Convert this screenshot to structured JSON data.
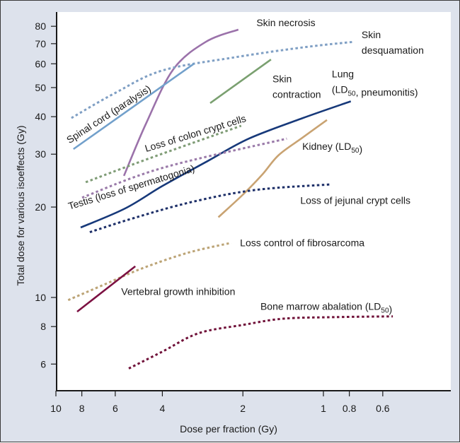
{
  "chart_data": {
    "type": "line",
    "title": "",
    "xlabel": "Dose per fraction (Gy)",
    "ylabel": "Total dose for various isoeffects (Gy)",
    "xscale": "log",
    "yscale": "log",
    "x_reversed": true,
    "xlim": [
      10,
      0.5
    ],
    "ylim": [
      5,
      90
    ],
    "grid": false,
    "legend": "none (inline labels)",
    "xticks": [
      {
        "value": 10,
        "label": "10"
      },
      {
        "value": 8,
        "label": "8"
      },
      {
        "value": 6,
        "label": "6"
      },
      {
        "value": 4,
        "label": "4"
      },
      {
        "value": 2,
        "label": "2"
      },
      {
        "value": 1,
        "label": "1"
      },
      {
        "value": 0.8,
        "label": "0.8"
      },
      {
        "value": 0.6,
        "label": "0.6"
      }
    ],
    "yticks": [
      {
        "value": 80,
        "label": "80"
      },
      {
        "value": 70,
        "label": "70"
      },
      {
        "value": 60,
        "label": "60"
      },
      {
        "value": 50,
        "label": "50"
      },
      {
        "value": 40,
        "label": "40"
      },
      {
        "value": 30,
        "label": "30"
      },
      {
        "value": 20,
        "label": "20"
      },
      {
        "value": 10,
        "label": "10"
      },
      {
        "value": 8,
        "label": "8"
      },
      {
        "value": 6,
        "label": "6"
      }
    ],
    "series": [
      {
        "name": "Skin necrosis",
        "style": "solid",
        "color": "#9b72aa",
        "points": [
          [
            5.57,
            25.4
          ],
          [
            4.6,
            38
          ],
          [
            3.64,
            57.5
          ],
          [
            2.75,
            71
          ],
          [
            2.08,
            78
          ]
        ],
        "label": {
          "text": "Skin necrosis",
          "at": [
            1.78,
            80
          ],
          "rotate": 0
        }
      },
      {
        "name": "Skin desquamation",
        "style": "dotted",
        "color": "#7f9fc4",
        "points": [
          [
            8.75,
            39.6
          ],
          [
            6.0,
            48
          ],
          [
            4.0,
            57
          ],
          [
            2.16,
            63
          ],
          [
            1.2,
            68
          ],
          [
            0.77,
            71
          ]
        ],
        "label": {
          "text": "Skin",
          "text2": "desquamation",
          "at": [
            0.72,
            73
          ],
          "rotate": 0
        }
      },
      {
        "name": "Spinal cord (paralysis)",
        "style": "solid",
        "color": "#72a0cb",
        "points": [
          [
            8.6,
            31.2
          ],
          [
            3.05,
            60
          ]
        ],
        "label": {
          "text": "Spinal cord (paralysis)",
          "at": [
            8.9,
            32.5
          ],
          "rotate": -33
        }
      },
      {
        "name": "Skin contraction",
        "style": "solid",
        "color": "#7aa070",
        "points": [
          [
            2.65,
            44.4
          ],
          [
            1.57,
            62
          ]
        ],
        "label": {
          "text": "Skin",
          "text2": "contraction",
          "at": [
            1.55,
            52
          ],
          "rotate": 0
        }
      },
      {
        "name": "Lung (LD50, pneumonitis)",
        "style": "solid",
        "color": "#17397a",
        "points": [
          [
            8.08,
            17.1
          ],
          [
            5.5,
            19.8
          ],
          [
            4.0,
            23.5
          ],
          [
            2.7,
            28.5
          ],
          [
            1.9,
            33.8
          ],
          [
            1.2,
            39.5
          ],
          [
            0.79,
            45
          ]
        ],
        "label": {
          "text": "Lung",
          "text2": "(LD50, pneumonitis)",
          "at": [
            0.93,
            54
          ],
          "rotate": 0
        }
      },
      {
        "name": "Kidney (LD50)",
        "style": "solid",
        "color": "#c9a372",
        "points": [
          [
            2.47,
            18.5
          ],
          [
            2.0,
            22
          ],
          [
            1.69,
            25.7
          ],
          [
            1.47,
            29.8
          ],
          [
            1.2,
            34
          ],
          [
            0.97,
            39
          ]
        ],
        "label": {
          "text": "Kidney (LD50)",
          "at": [
            1.2,
            31
          ],
          "rotate": 0
        }
      },
      {
        "name": "Loss of colon crypt cells",
        "style": "dotted",
        "color": "#7f9c76",
        "points": [
          [
            7.74,
            24.2
          ],
          [
            4.5,
            29
          ],
          [
            2.03,
            37.3
          ]
        ],
        "label": {
          "text": "Loss of colon crypt cells",
          "at": [
            4.6,
            30.5
          ],
          "rotate": -17
        }
      },
      {
        "name": "Testis (loss of spermatogonia)",
        "style": "dotted",
        "color": "#9a7aa9",
        "points": [
          [
            7.98,
            21.5
          ],
          [
            4.0,
            27
          ],
          [
            1.37,
            33.8
          ]
        ],
        "label": {
          "text": "Testis (loss of spermatogonia)",
          "at": [
            8.9,
            19.6
          ],
          "rotate": -17
        }
      },
      {
        "name": "Loss of jejunal crypt cells",
        "style": "dotted",
        "color": "#1d2f68",
        "points": [
          [
            7.47,
            16.5
          ],
          [
            5.0,
            18.5
          ],
          [
            3.1,
            20.8
          ],
          [
            1.8,
            22.8
          ],
          [
            0.94,
            23.8
          ]
        ],
        "label": {
          "text": "Loss of jejunal crypt cells",
          "at": [
            1.22,
            20.5
          ],
          "rotate": 0
        }
      },
      {
        "name": "Loss control of fibrosarcoma",
        "style": "dotted",
        "color": "#bca476",
        "points": [
          [
            9.0,
            9.8
          ],
          [
            6.5,
            11.1
          ],
          [
            4.76,
            12.5
          ],
          [
            3.2,
            14.1
          ],
          [
            2.21,
            15.2
          ]
        ],
        "label": {
          "text": "Loss control of fibrosarcoma",
          "at": [
            2.05,
            14.8
          ],
          "rotate": 0
        }
      },
      {
        "name": "Vertebral growth inhibition",
        "style": "solid",
        "color": "#7c1142",
        "points": [
          [
            8.33,
            8.97
          ],
          [
            5.05,
            12.7
          ]
        ],
        "label": {
          "text": "Vertebral growth inhibition",
          "at": [
            5.7,
            10.2
          ],
          "rotate": 0
        }
      },
      {
        "name": "Bone marrow abalation (LD50)",
        "style": "dotted",
        "color": "#701139",
        "points": [
          [
            5.34,
            5.8
          ],
          [
            4.0,
            6.6
          ],
          [
            2.93,
            7.6
          ],
          [
            2.0,
            8.1
          ],
          [
            1.41,
            8.5
          ],
          [
            0.9,
            8.6
          ],
          [
            0.55,
            8.65
          ]
        ],
        "label": {
          "text": "Bone marrow abalation (LD50)",
          "at": [
            1.72,
            9.1
          ],
          "rotate": 0
        }
      }
    ]
  }
}
